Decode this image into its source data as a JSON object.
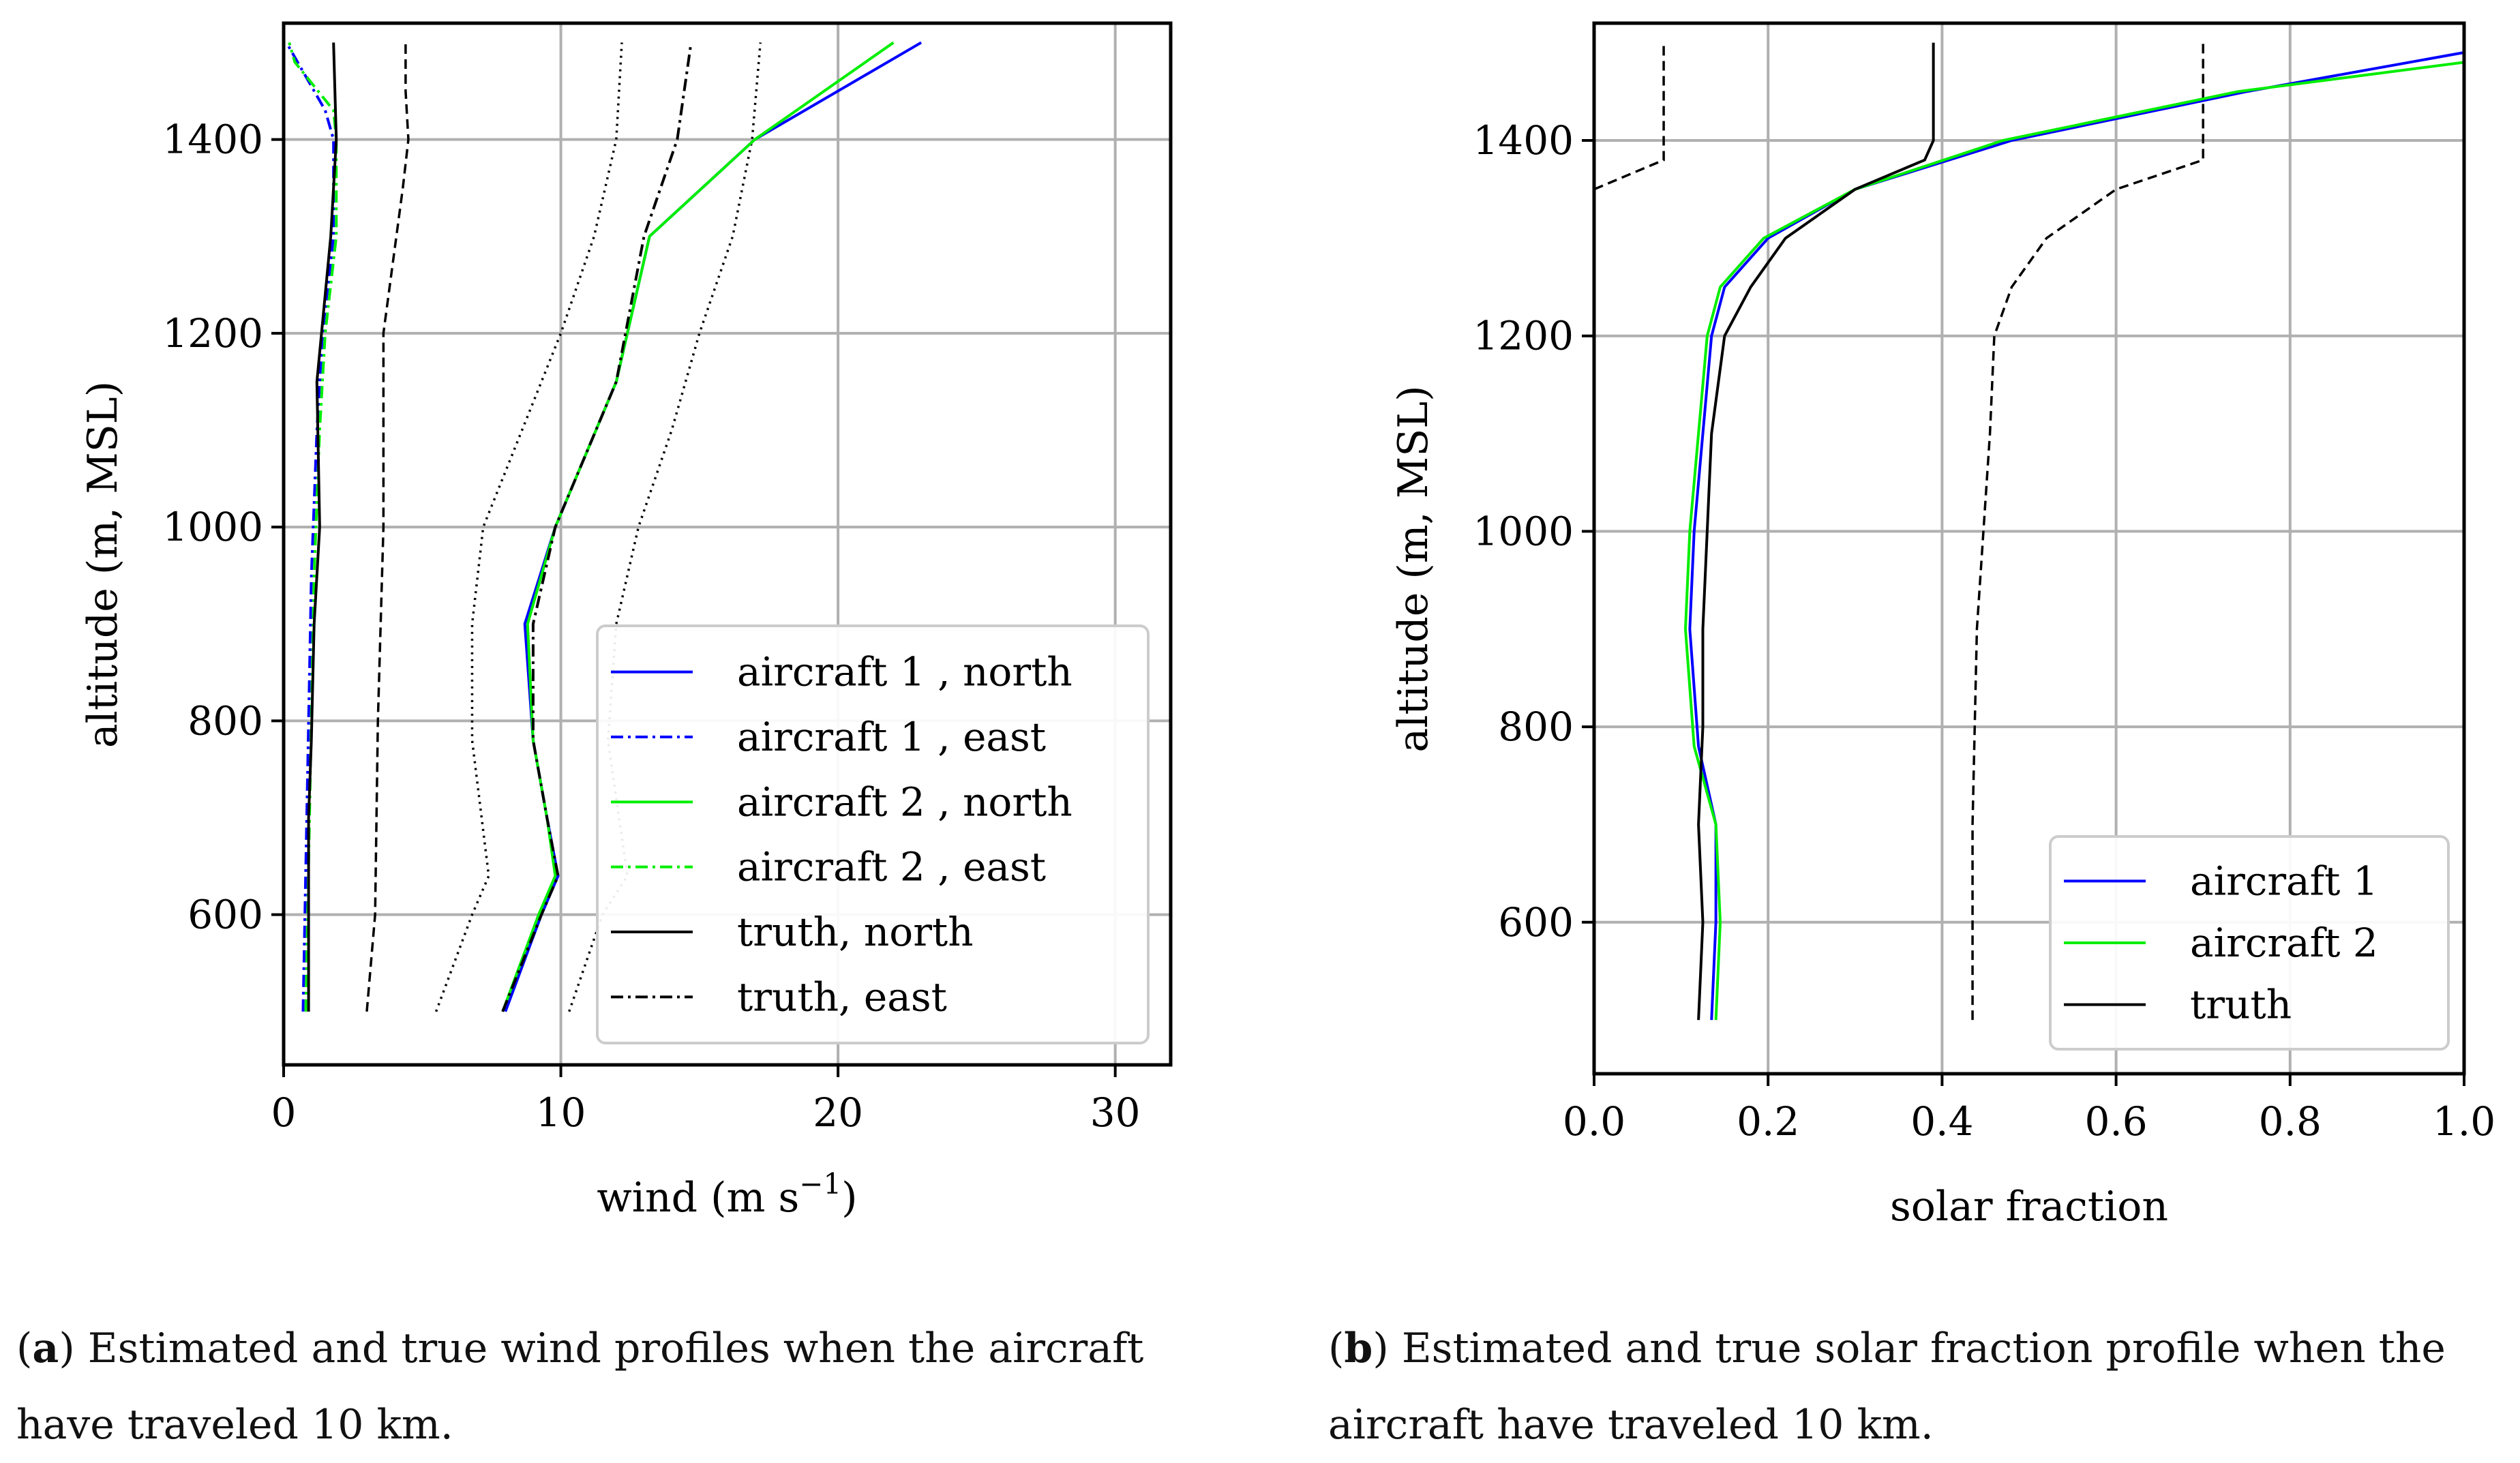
{
  "figure_a": {
    "caption_label": "a",
    "caption_text": "Estimated and true wind profiles when the aircraft have traveled 10 km."
  },
  "figure_b": {
    "caption_label": "b",
    "caption_text": "Estimated and true solar fraction profile when the aircraft have traveled 10 km."
  },
  "chart_data": [
    {
      "id": "a",
      "type": "line",
      "xlabel": "wind (m s",
      "xlabel_exponent": "−1",
      "xlabel_suffix": ")",
      "ylabel": "altitude (m, MSL)",
      "xlim": [
        0,
        32
      ],
      "ylim": [
        445,
        1520
      ],
      "xticks": [
        0,
        10,
        20,
        30
      ],
      "xtick_labels": [
        "0",
        "10",
        "20",
        "30"
      ],
      "yticks": [
        600,
        800,
        1000,
        1200,
        1400
      ],
      "ytick_labels": [
        "600",
        "800",
        "1000",
        "1200",
        "1400"
      ],
      "grid": true,
      "legend_position": "lower-right",
      "colors": {
        "aircraft1": "#0000ff",
        "aircraft2": "#00ee00",
        "truth": "#000000"
      },
      "series": [
        {
          "name": "aircraft 1 , north",
          "color": "#0000ff",
          "style": "solid",
          "y": [
            500,
            600,
            640,
            700,
            780,
            900,
            1000,
            1150,
            1300,
            1400,
            1500
          ],
          "x": [
            8.0,
            9.3,
            9.9,
            9.5,
            9.0,
            8.7,
            9.8,
            12.0,
            13.2,
            17.0,
            23.0
          ]
        },
        {
          "name": "aircraft 1 , east",
          "color": "#0000ff",
          "style": "dashdot",
          "y": [
            500,
            800,
            950,
            1100,
            1200,
            1300,
            1400,
            1430,
            1480,
            1500
          ],
          "x": [
            0.7,
            0.9,
            1.0,
            1.2,
            1.4,
            1.8,
            1.8,
            1.5,
            0.5,
            0.1
          ]
        },
        {
          "name": "aircraft 2 , north",
          "color": "#00ee00",
          "style": "solid",
          "y": [
            500,
            600,
            640,
            700,
            780,
            900,
            1000,
            1150,
            1300,
            1400,
            1500
          ],
          "x": [
            7.9,
            9.2,
            9.8,
            9.5,
            9.0,
            8.8,
            9.8,
            12.0,
            13.2,
            17.0,
            22.0
          ]
        },
        {
          "name": "aircraft 2 , east",
          "color": "#00ee00",
          "style": "dashdot",
          "y": [
            500,
            800,
            950,
            1100,
            1200,
            1300,
            1400,
            1430,
            1480,
            1500
          ],
          "x": [
            0.8,
            1.0,
            1.1,
            1.3,
            1.5,
            1.9,
            1.9,
            1.8,
            0.4,
            0.2
          ]
        },
        {
          "name": "truth, north",
          "color": "#000000",
          "style": "solid",
          "y": [
            500,
            700,
            780,
            900,
            1000,
            1150,
            1300,
            1400,
            1500
          ],
          "x": [
            0.9,
            0.9,
            1.0,
            1.1,
            1.3,
            1.2,
            1.7,
            1.9,
            1.8
          ]
        },
        {
          "name": "truth, east",
          "color": "#000000",
          "style": "dashdot",
          "y": [
            500,
            600,
            640,
            700,
            780,
            900,
            1000,
            1150,
            1300,
            1400,
            1500
          ],
          "x": [
            7.9,
            9.3,
            9.9,
            9.5,
            9.0,
            9.0,
            9.8,
            12.0,
            13.0,
            14.2,
            14.7
          ]
        }
      ],
      "uncertainty_lines": {
        "note": "dotted/dashed black envelopes drawn without legend entries",
        "lines": [
          {
            "style": "dashed",
            "y": [
              500,
              600,
              800,
              1000,
              1200,
              1350,
              1400,
              1450,
              1500
            ],
            "x": [
              3.0,
              3.3,
              3.4,
              3.6,
              3.6,
              4.3,
              4.5,
              4.4,
              4.4
            ]
          },
          {
            "style": "dotted",
            "y": [
              500,
              600,
              640,
              780,
              900,
              1000,
              1100,
              1200,
              1300,
              1400,
              1500
            ],
            "x": [
              5.5,
              6.8,
              7.4,
              6.8,
              6.8,
              7.2,
              8.6,
              10.0,
              11.2,
              12.0,
              12.2
            ]
          },
          {
            "style": "dotted",
            "y": [
              500,
              600,
              640,
              780,
              900,
              1000,
              1100,
              1200,
              1300,
              1400,
              1500
            ],
            "x": [
              10.3,
              11.5,
              12.4,
              11.7,
              12.0,
              12.8,
              14.0,
              15.0,
              16.2,
              16.9,
              17.2
            ]
          }
        ]
      },
      "legend": [
        {
          "label": "aircraft 1 , north",
          "color": "#0000ff",
          "style": "solid"
        },
        {
          "label": "aircraft 1 , east",
          "color": "#0000ff",
          "style": "dashdot"
        },
        {
          "label": "aircraft 2 , north",
          "color": "#00ee00",
          "style": "solid"
        },
        {
          "label": "aircraft 2 , east",
          "color": "#00ee00",
          "style": "dashdot"
        },
        {
          "label": "truth, north",
          "color": "#000000",
          "style": "solid"
        },
        {
          "label": "truth, east",
          "color": "#000000",
          "style": "dashdot"
        }
      ]
    },
    {
      "id": "b",
      "type": "line",
      "xlabel": "solar fraction",
      "ylabel": "altitude (m, MSL)",
      "xlim": [
        0.0,
        1.0
      ],
      "ylim": [
        445,
        1520
      ],
      "xticks": [
        0.0,
        0.2,
        0.4,
        0.6,
        0.8,
        1.0
      ],
      "xtick_labels": [
        "0.0",
        "0.2",
        "0.4",
        "0.6",
        "0.8",
        "1.0"
      ],
      "yticks": [
        600,
        800,
        1000,
        1200,
        1400
      ],
      "ytick_labels": [
        "600",
        "800",
        "1000",
        "1200",
        "1400"
      ],
      "grid": true,
      "legend_position": "lower-right",
      "series": [
        {
          "name": "aircraft 1",
          "color": "#0000ff",
          "style": "solid",
          "y": [
            500,
            600,
            700,
            780,
            900,
            1000,
            1100,
            1200,
            1250,
            1300,
            1350,
            1400,
            1450,
            1490
          ],
          "x": [
            0.135,
            0.14,
            0.14,
            0.12,
            0.11,
            0.115,
            0.125,
            0.135,
            0.15,
            0.2,
            0.3,
            0.48,
            0.75,
            1.0
          ]
        },
        {
          "name": "aircraft 2",
          "color": "#00ee00",
          "style": "solid",
          "y": [
            500,
            600,
            700,
            780,
            900,
            1000,
            1100,
            1200,
            1250,
            1300,
            1350,
            1400,
            1450,
            1480
          ],
          "x": [
            0.14,
            0.145,
            0.14,
            0.115,
            0.105,
            0.11,
            0.12,
            0.13,
            0.145,
            0.195,
            0.3,
            0.47,
            0.74,
            1.0
          ]
        },
        {
          "name": "truth",
          "color": "#000000",
          "style": "solid",
          "y": [
            500,
            600,
            700,
            800,
            900,
            1000,
            1100,
            1200,
            1250,
            1300,
            1350,
            1380,
            1400,
            1500
          ],
          "x": [
            0.12,
            0.125,
            0.12,
            0.125,
            0.125,
            0.13,
            0.135,
            0.15,
            0.18,
            0.22,
            0.3,
            0.38,
            0.39,
            0.39
          ]
        }
      ],
      "uncertainty_lines": {
        "note": "dashed black envelopes drawn without legend entries",
        "lines": [
          {
            "style": "dashed",
            "y": [
              1350,
              1380,
              1400,
              1500
            ],
            "x": [
              0.0,
              0.08,
              0.08,
              0.08
            ]
          },
          {
            "style": "dashed",
            "y": [
              500,
              700,
              900,
              1100,
              1200,
              1250,
              1300,
              1350,
              1380,
              1400,
              1500
            ],
            "x": [
              0.435,
              0.435,
              0.44,
              0.455,
              0.46,
              0.48,
              0.52,
              0.6,
              0.7,
              0.7,
              0.7
            ]
          }
        ]
      },
      "legend": [
        {
          "label": "aircraft 1",
          "color": "#0000ff",
          "style": "solid"
        },
        {
          "label": "aircraft 2",
          "color": "#00ee00",
          "style": "solid"
        },
        {
          "label": "truth",
          "color": "#000000",
          "style": "solid"
        }
      ]
    }
  ]
}
